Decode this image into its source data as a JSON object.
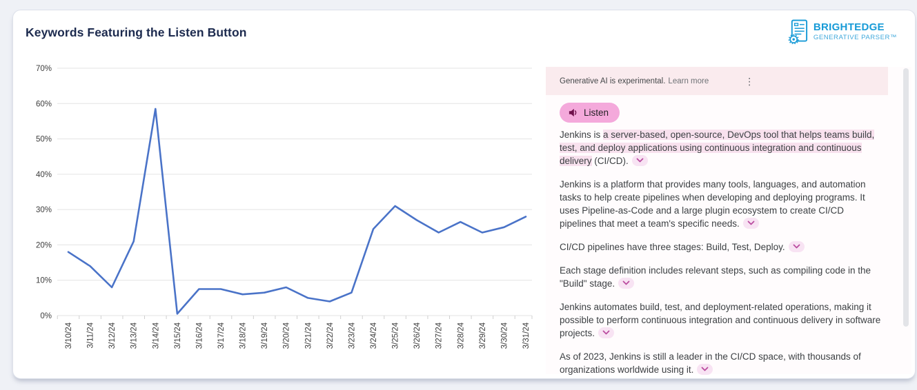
{
  "header": {
    "title": "Keywords Featuring the Listen Button"
  },
  "logo": {
    "brand": "BRIGHTEDGE",
    "tagline": "GENERATIVE PARSER™",
    "color": "#189BD7"
  },
  "chart_data": {
    "type": "line",
    "title": "Keywords Featuring the Listen Button",
    "categories": [
      "3/10/24",
      "3/11/24",
      "3/12/24",
      "3/13/24",
      "3/14/24",
      "3/15/24",
      "3/16/24",
      "3/17/24",
      "3/18/24",
      "3/19/24",
      "3/20/24",
      "3/21/24",
      "3/22/24",
      "3/23/24",
      "3/24/24",
      "3/25/24",
      "3/26/24",
      "3/27/24",
      "3/28/24",
      "3/29/24",
      "3/30/24",
      "3/31/24"
    ],
    "values": [
      18,
      14,
      8,
      21,
      58.5,
      0.5,
      7.5,
      7.5,
      6,
      6.5,
      8,
      5,
      4,
      6.5,
      24.5,
      31,
      27,
      23.5,
      26.5,
      23.5,
      25,
      28
    ],
    "xlabel": "",
    "ylabel": "",
    "ylim": [
      0,
      70
    ],
    "yticks": [
      0,
      10,
      20,
      30,
      40,
      50,
      60,
      70
    ],
    "ytick_suffix": "%",
    "grid": true,
    "legend": "none",
    "line_color": "#4A73C8",
    "grid_color": "#E3E3E3",
    "axis_text_color": "#3D3D3D"
  },
  "panel": {
    "disclaimer": "Generative AI is experimental.",
    "learn_more": "Learn more",
    "listen_label": "Listen",
    "accent_colors": {
      "band_bg": "#FAEBEE",
      "listen_bg": "#F4A9DB",
      "highlight": "#F8E1EE",
      "chip_bg": "#F8E3F3",
      "chip_glyph": "#BA4C9F"
    },
    "paragraphs": [
      {
        "segments": [
          {
            "text": "Jenkins is ",
            "highlight": false
          },
          {
            "text": "a server-based, open-source, DevOps tool that helps teams build, test, and deploy applications using continuous integration and continuous delivery",
            "highlight": true
          },
          {
            "text": " (CI/CD).",
            "highlight": false
          }
        ]
      },
      {
        "segments": [
          {
            "text": "Jenkins is a platform that provides many tools, languages, and automation tasks to help create pipelines when developing and deploying programs. It uses Pipeline-as-Code and a large plugin ecosystem to create CI/CD pipelines that meet a team's specific needs.",
            "highlight": false
          }
        ]
      },
      {
        "segments": [
          {
            "text": "CI/CD pipelines have three stages: Build, Test, Deploy.",
            "highlight": false
          }
        ]
      },
      {
        "segments": [
          {
            "text": "Each stage definition includes relevant steps, such as compiling code in the \"Build\" stage.",
            "highlight": false
          }
        ]
      },
      {
        "segments": [
          {
            "text": "Jenkins automates build, test, and deployment-related operations, making it possible to perform continuous integration and continuous delivery in software projects.",
            "highlight": false
          }
        ]
      },
      {
        "segments": [
          {
            "text": "As of 2023, Jenkins is still a leader in the CI/CD space, with thousands of organizations worldwide using it.",
            "highlight": false
          }
        ]
      }
    ]
  }
}
